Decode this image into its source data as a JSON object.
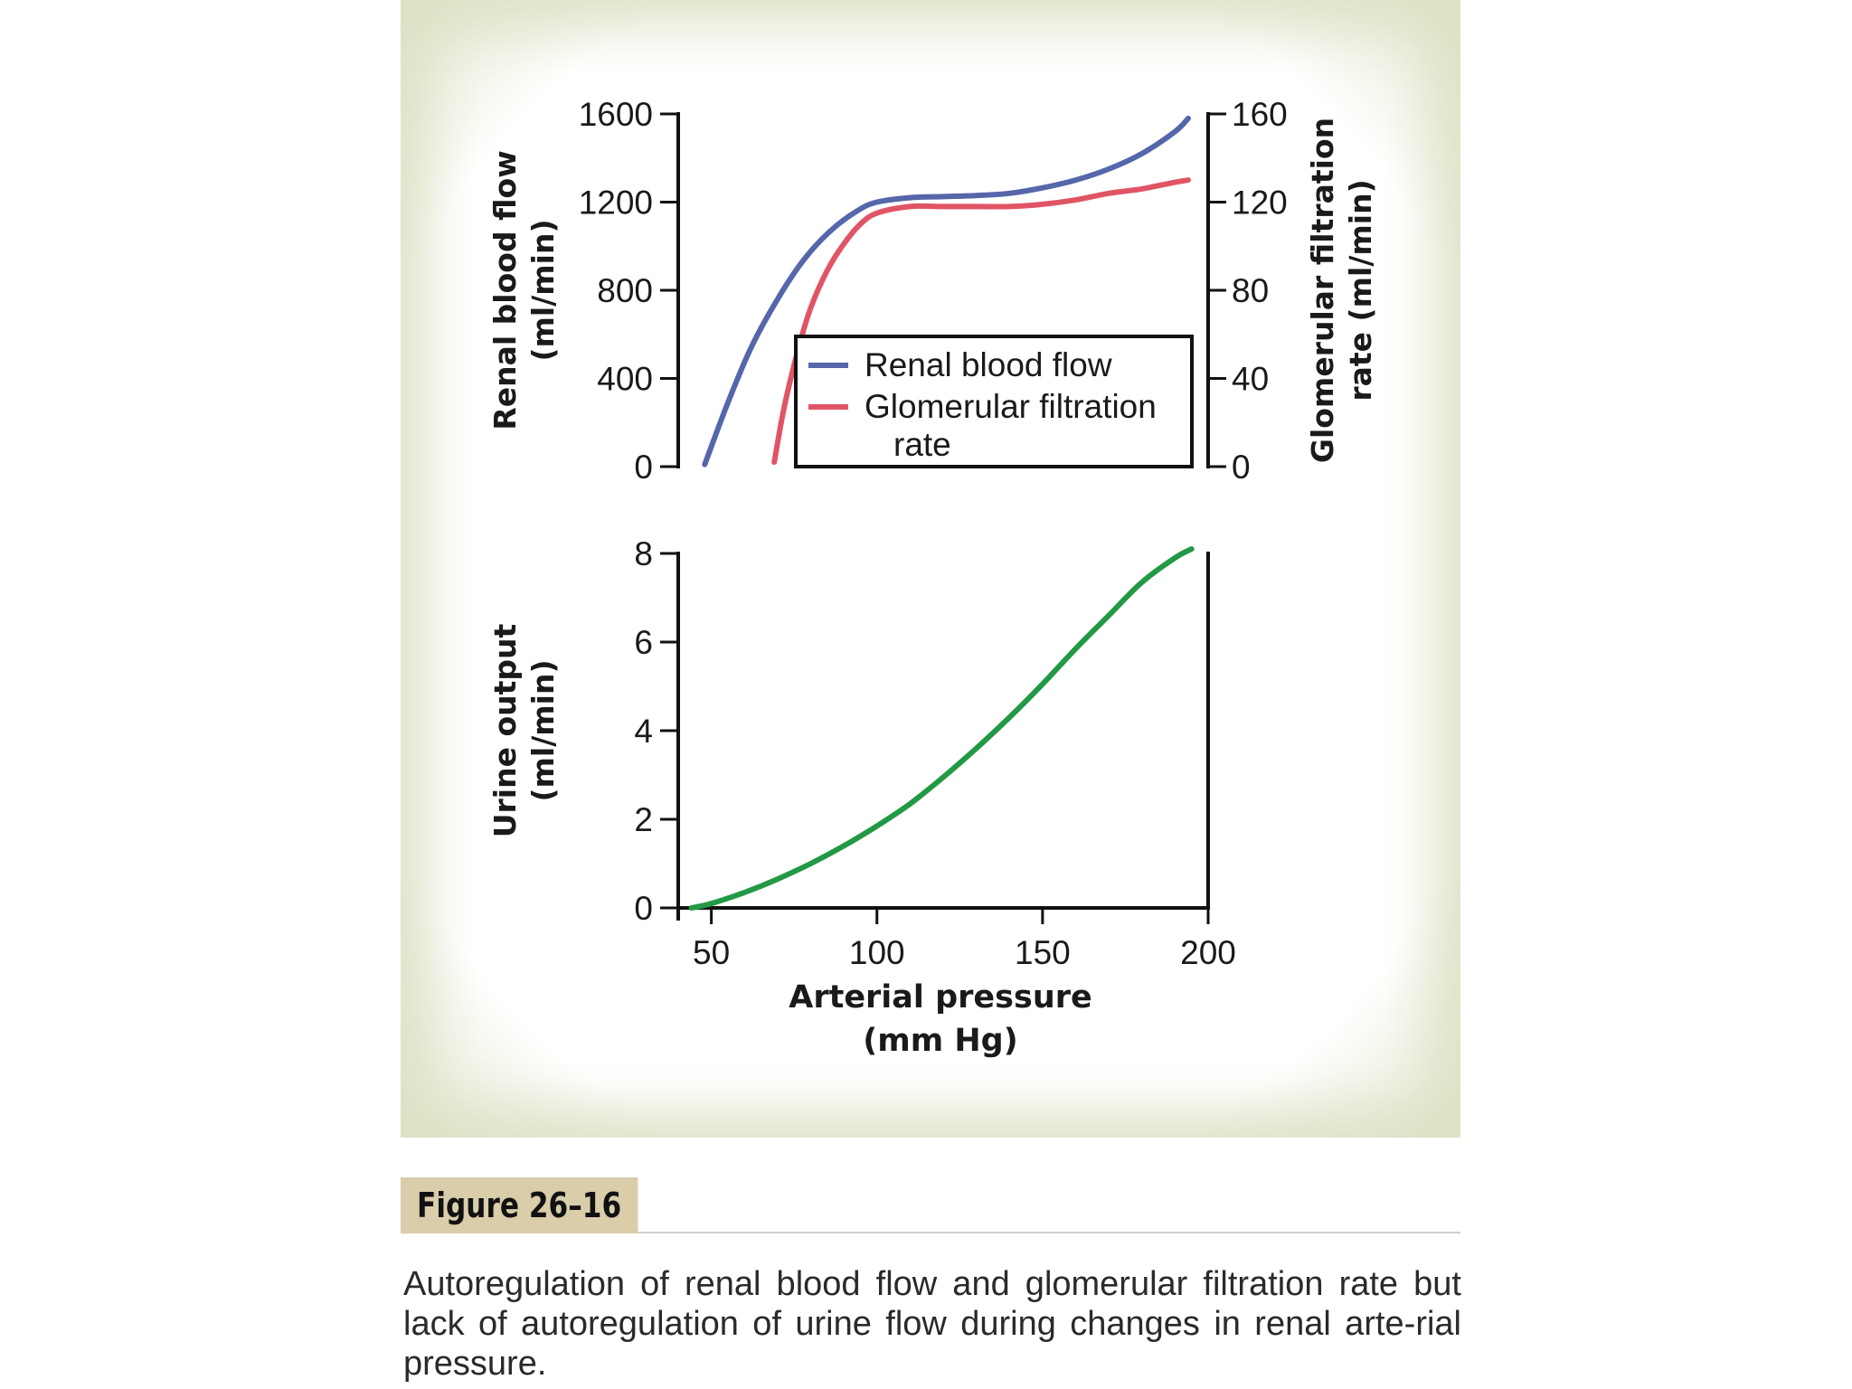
{
  "figure_label": "Figure 26–16",
  "caption": "Autoregulation of renal blood flow and glomerular filtration rate but lack of autoregulation of urine flow during changes in renal arte-rial pressure.",
  "colors": {
    "renal_blood_flow": "#5566aa",
    "glomerular_filtration_rate": "#e05566",
    "urine_output": "#229944",
    "axis": "#111111",
    "panel_border": "#dde2c6",
    "figure_label_bg": "#d9cdaa"
  },
  "chart_data": [
    {
      "type": "line",
      "title": "",
      "legend": {
        "placement": "bottom-right",
        "entries": [
          {
            "series": 0,
            "lines": [
              "Renal blood flow"
            ]
          },
          {
            "series": 1,
            "lines": [
              "Glomerular filtration",
              "rate"
            ]
          }
        ]
      },
      "ylabel_left": [
        "Renal blood flow",
        "(ml/min)"
      ],
      "ylabel_right": [
        "Glomerular filtration",
        "rate (ml/min)"
      ],
      "xlim": [
        40,
        200
      ],
      "ylim_left": [
        0,
        1600
      ],
      "ylim_right": [
        0,
        160
      ],
      "yticks_left": [
        0,
        400,
        800,
        1200,
        1600
      ],
      "yticks_right": [
        0,
        40,
        80,
        120,
        160
      ],
      "series": [
        {
          "name": "Renal blood flow",
          "axis": "left",
          "x": [
            48,
            55,
            62,
            70,
            78,
            86,
            94,
            100,
            110,
            120,
            130,
            140,
            150,
            160,
            170,
            180,
            190,
            194
          ],
          "y": [
            10,
            290,
            540,
            760,
            940,
            1070,
            1160,
            1200,
            1220,
            1225,
            1230,
            1240,
            1265,
            1300,
            1350,
            1420,
            1520,
            1580
          ]
        },
        {
          "name": "Glomerular filtration rate",
          "axis": "right",
          "x": [
            69,
            72,
            76,
            80,
            85,
            90,
            95,
            100,
            110,
            120,
            130,
            140,
            150,
            160,
            170,
            180,
            190,
            194
          ],
          "y": [
            2,
            27,
            52,
            72,
            89,
            101,
            110,
            115,
            118,
            118,
            118,
            118,
            119,
            121,
            124,
            126,
            129,
            130
          ]
        }
      ]
    },
    {
      "type": "line",
      "title": "",
      "xlabel": [
        "Arterial pressure",
        "(mm Hg)"
      ],
      "ylabel": [
        "Urine output",
        "(ml/min)"
      ],
      "xlim": [
        40,
        200
      ],
      "ylim": [
        0,
        8
      ],
      "xticks": [
        50,
        100,
        150,
        200
      ],
      "yticks": [
        0,
        2,
        4,
        6,
        8
      ],
      "series": [
        {
          "name": "Urine output",
          "x": [
            44,
            50,
            60,
            70,
            80,
            90,
            100,
            110,
            120,
            130,
            140,
            150,
            160,
            170,
            180,
            190,
            195
          ],
          "y": [
            0.0,
            0.1,
            0.35,
            0.65,
            1.0,
            1.4,
            1.85,
            2.35,
            2.95,
            3.6,
            4.3,
            5.05,
            5.85,
            6.6,
            7.35,
            7.9,
            8.1
          ]
        }
      ]
    }
  ]
}
